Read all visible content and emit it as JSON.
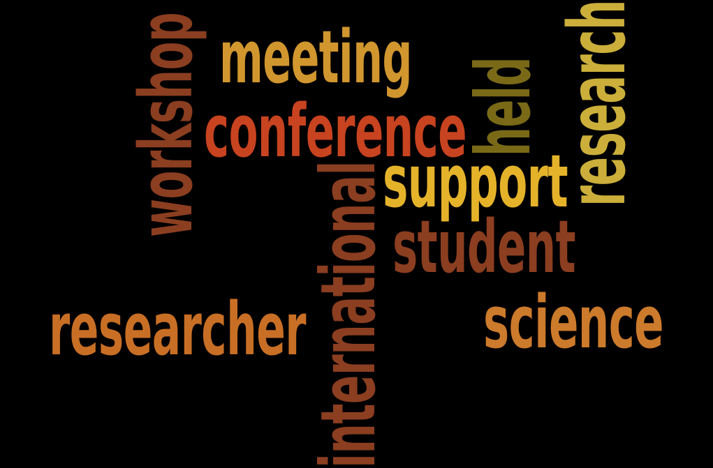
{
  "background": "#000000",
  "words": [
    {
      "id": "word-meeting",
      "text": "meeting",
      "color": "#D1962E",
      "orientation": "horizontal"
    },
    {
      "id": "word-conference",
      "text": "conference",
      "color": "#C8431F",
      "orientation": "horizontal"
    },
    {
      "id": "word-support",
      "text": "support",
      "color": "#E5B32A",
      "orientation": "horizontal"
    },
    {
      "id": "word-student",
      "text": "student",
      "color": "#8B3E20",
      "orientation": "horizontal"
    },
    {
      "id": "word-researcher",
      "text": "researcher",
      "color": "#C86F25",
      "orientation": "horizontal"
    },
    {
      "id": "word-science",
      "text": "science",
      "color": "#CC7A2B",
      "orientation": "horizontal"
    },
    {
      "id": "word-workshop",
      "text": "workshop",
      "color": "#8B3E20",
      "orientation": "vertical"
    },
    {
      "id": "word-international",
      "text": "international",
      "color": "#8B3E20",
      "orientation": "vertical"
    },
    {
      "id": "word-held",
      "text": "held",
      "color": "#7A6A18",
      "orientation": "vertical"
    },
    {
      "id": "word-research",
      "text": "research",
      "color": "#CBAF3A",
      "orientation": "vertical"
    }
  ]
}
